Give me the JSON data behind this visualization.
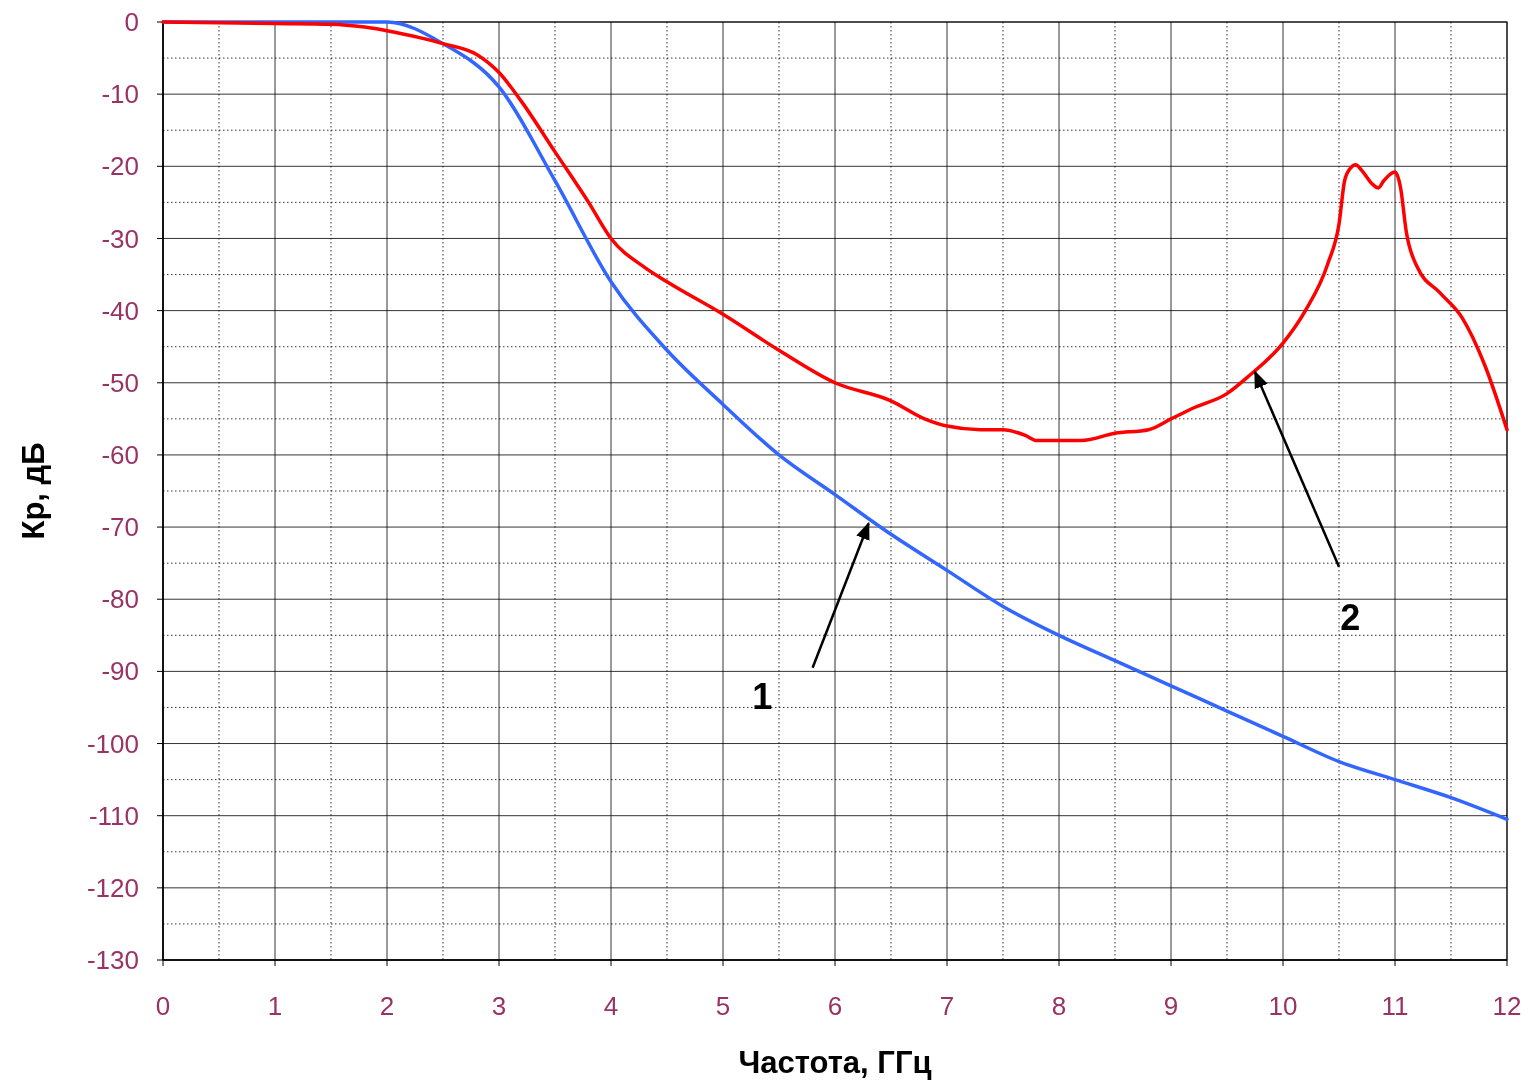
{
  "chart_data": {
    "type": "line",
    "xlabel": "Частота, ГГц",
    "ylabel": "Кр, дБ",
    "xlim": [
      0,
      12
    ],
    "xticks": [
      0,
      1,
      2,
      3,
      4,
      5,
      6,
      7,
      8,
      9,
      10,
      11,
      12
    ],
    "ylim": [
      -130,
      0
    ],
    "yticks": [
      0,
      -10,
      -20,
      -30,
      -40,
      -50,
      -60,
      -70,
      -80,
      -90,
      -100,
      -110,
      -120,
      -130
    ],
    "grid": true,
    "series": [
      {
        "color": "#3366ff",
        "x": [
          0,
          1,
          1.5,
          2,
          2.5,
          3,
          3.5,
          4,
          4.5,
          5,
          5.5,
          6,
          6.5,
          7,
          7.5,
          8,
          8.5,
          9,
          9.5,
          10,
          10.5,
          11,
          11.5,
          12
        ],
        "values": [
          0,
          0,
          0,
          0,
          -3,
          -9,
          -22,
          -36,
          -45.5,
          -53,
          -60,
          -65.5,
          -71,
          -76,
          -81,
          -85,
          -88.5,
          -92,
          -95.5,
          -99,
          -102.5,
          -105,
          -107.5,
          -110.5
        ]
      },
      {
        "color": "#ff0000",
        "x": [
          0,
          1,
          1.5,
          1.8,
          2,
          2.3,
          2.5,
          2.8,
          3,
          3.2,
          3.5,
          3.8,
          4,
          4.3,
          4.5,
          5,
          5.5,
          6,
          6.5,
          6.8,
          7,
          7.3,
          7.5,
          7.7,
          7.8,
          8.2,
          8.5,
          8.8,
          9,
          9.2,
          9.5,
          9.7,
          10,
          10.2,
          10.4,
          10.5,
          10.55,
          10.6,
          10.65,
          10.7,
          10.8,
          10.85,
          10.9,
          11,
          11.05,
          11.1,
          11.2,
          11.4,
          11.6,
          11.8,
          12
        ],
        "values": [
          0,
          -0.2,
          -0.3,
          -0.7,
          -1.2,
          -2.2,
          -3,
          -4.5,
          -7,
          -11,
          -18,
          -25,
          -30,
          -34,
          -36,
          -40.5,
          -45.5,
          -50,
          -52.5,
          -55,
          -56,
          -56.5,
          -56.5,
          -57.3,
          -58,
          -58,
          -57,
          -56.5,
          -55,
          -53.5,
          -51.5,
          -49,
          -44.5,
          -40,
          -33.5,
          -28,
          -22,
          -20.3,
          -19.8,
          -20.5,
          -22.5,
          -23,
          -22,
          -20.8,
          -23,
          -29,
          -34,
          -37.5,
          -41,
          -47.5,
          -56.5
        ]
      }
    ],
    "annotations": [
      {
        "text": "1",
        "x": 6.3,
        "y": -69.5
      },
      {
        "text": "2",
        "x": 9.75,
        "y": -48.5
      }
    ]
  }
}
